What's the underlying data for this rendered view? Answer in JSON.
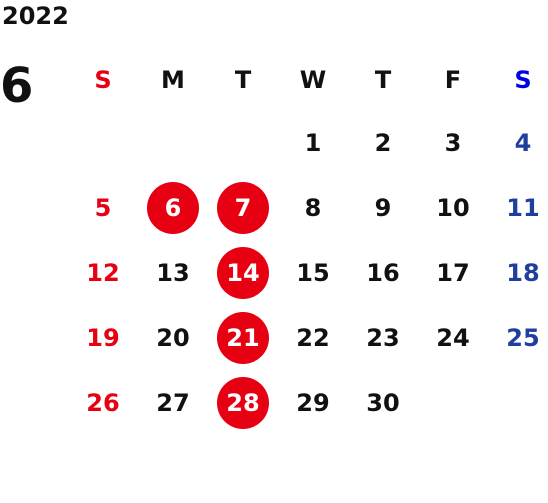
{
  "year": "2022",
  "month": "6",
  "weekdays": [
    "S",
    "M",
    "T",
    "W",
    "T",
    "F",
    "S"
  ],
  "weeks": [
    [
      "",
      "",
      "",
      "1",
      "2",
      "3",
      "4"
    ],
    [
      "5",
      "6",
      "7",
      "8",
      "9",
      "10",
      "11"
    ],
    [
      "12",
      "13",
      "14",
      "15",
      "16",
      "17",
      "18"
    ],
    [
      "19",
      "20",
      "21",
      "22",
      "23",
      "24",
      "25"
    ],
    [
      "26",
      "27",
      "28",
      "29",
      "30",
      "",
      ""
    ]
  ],
  "highlighted_days": [
    "6",
    "7",
    "14",
    "21",
    "28"
  ],
  "colors": {
    "sunday": "#e60012",
    "saturday": "#1f3f9f",
    "highlight": "#e60012",
    "text": "#111111"
  }
}
